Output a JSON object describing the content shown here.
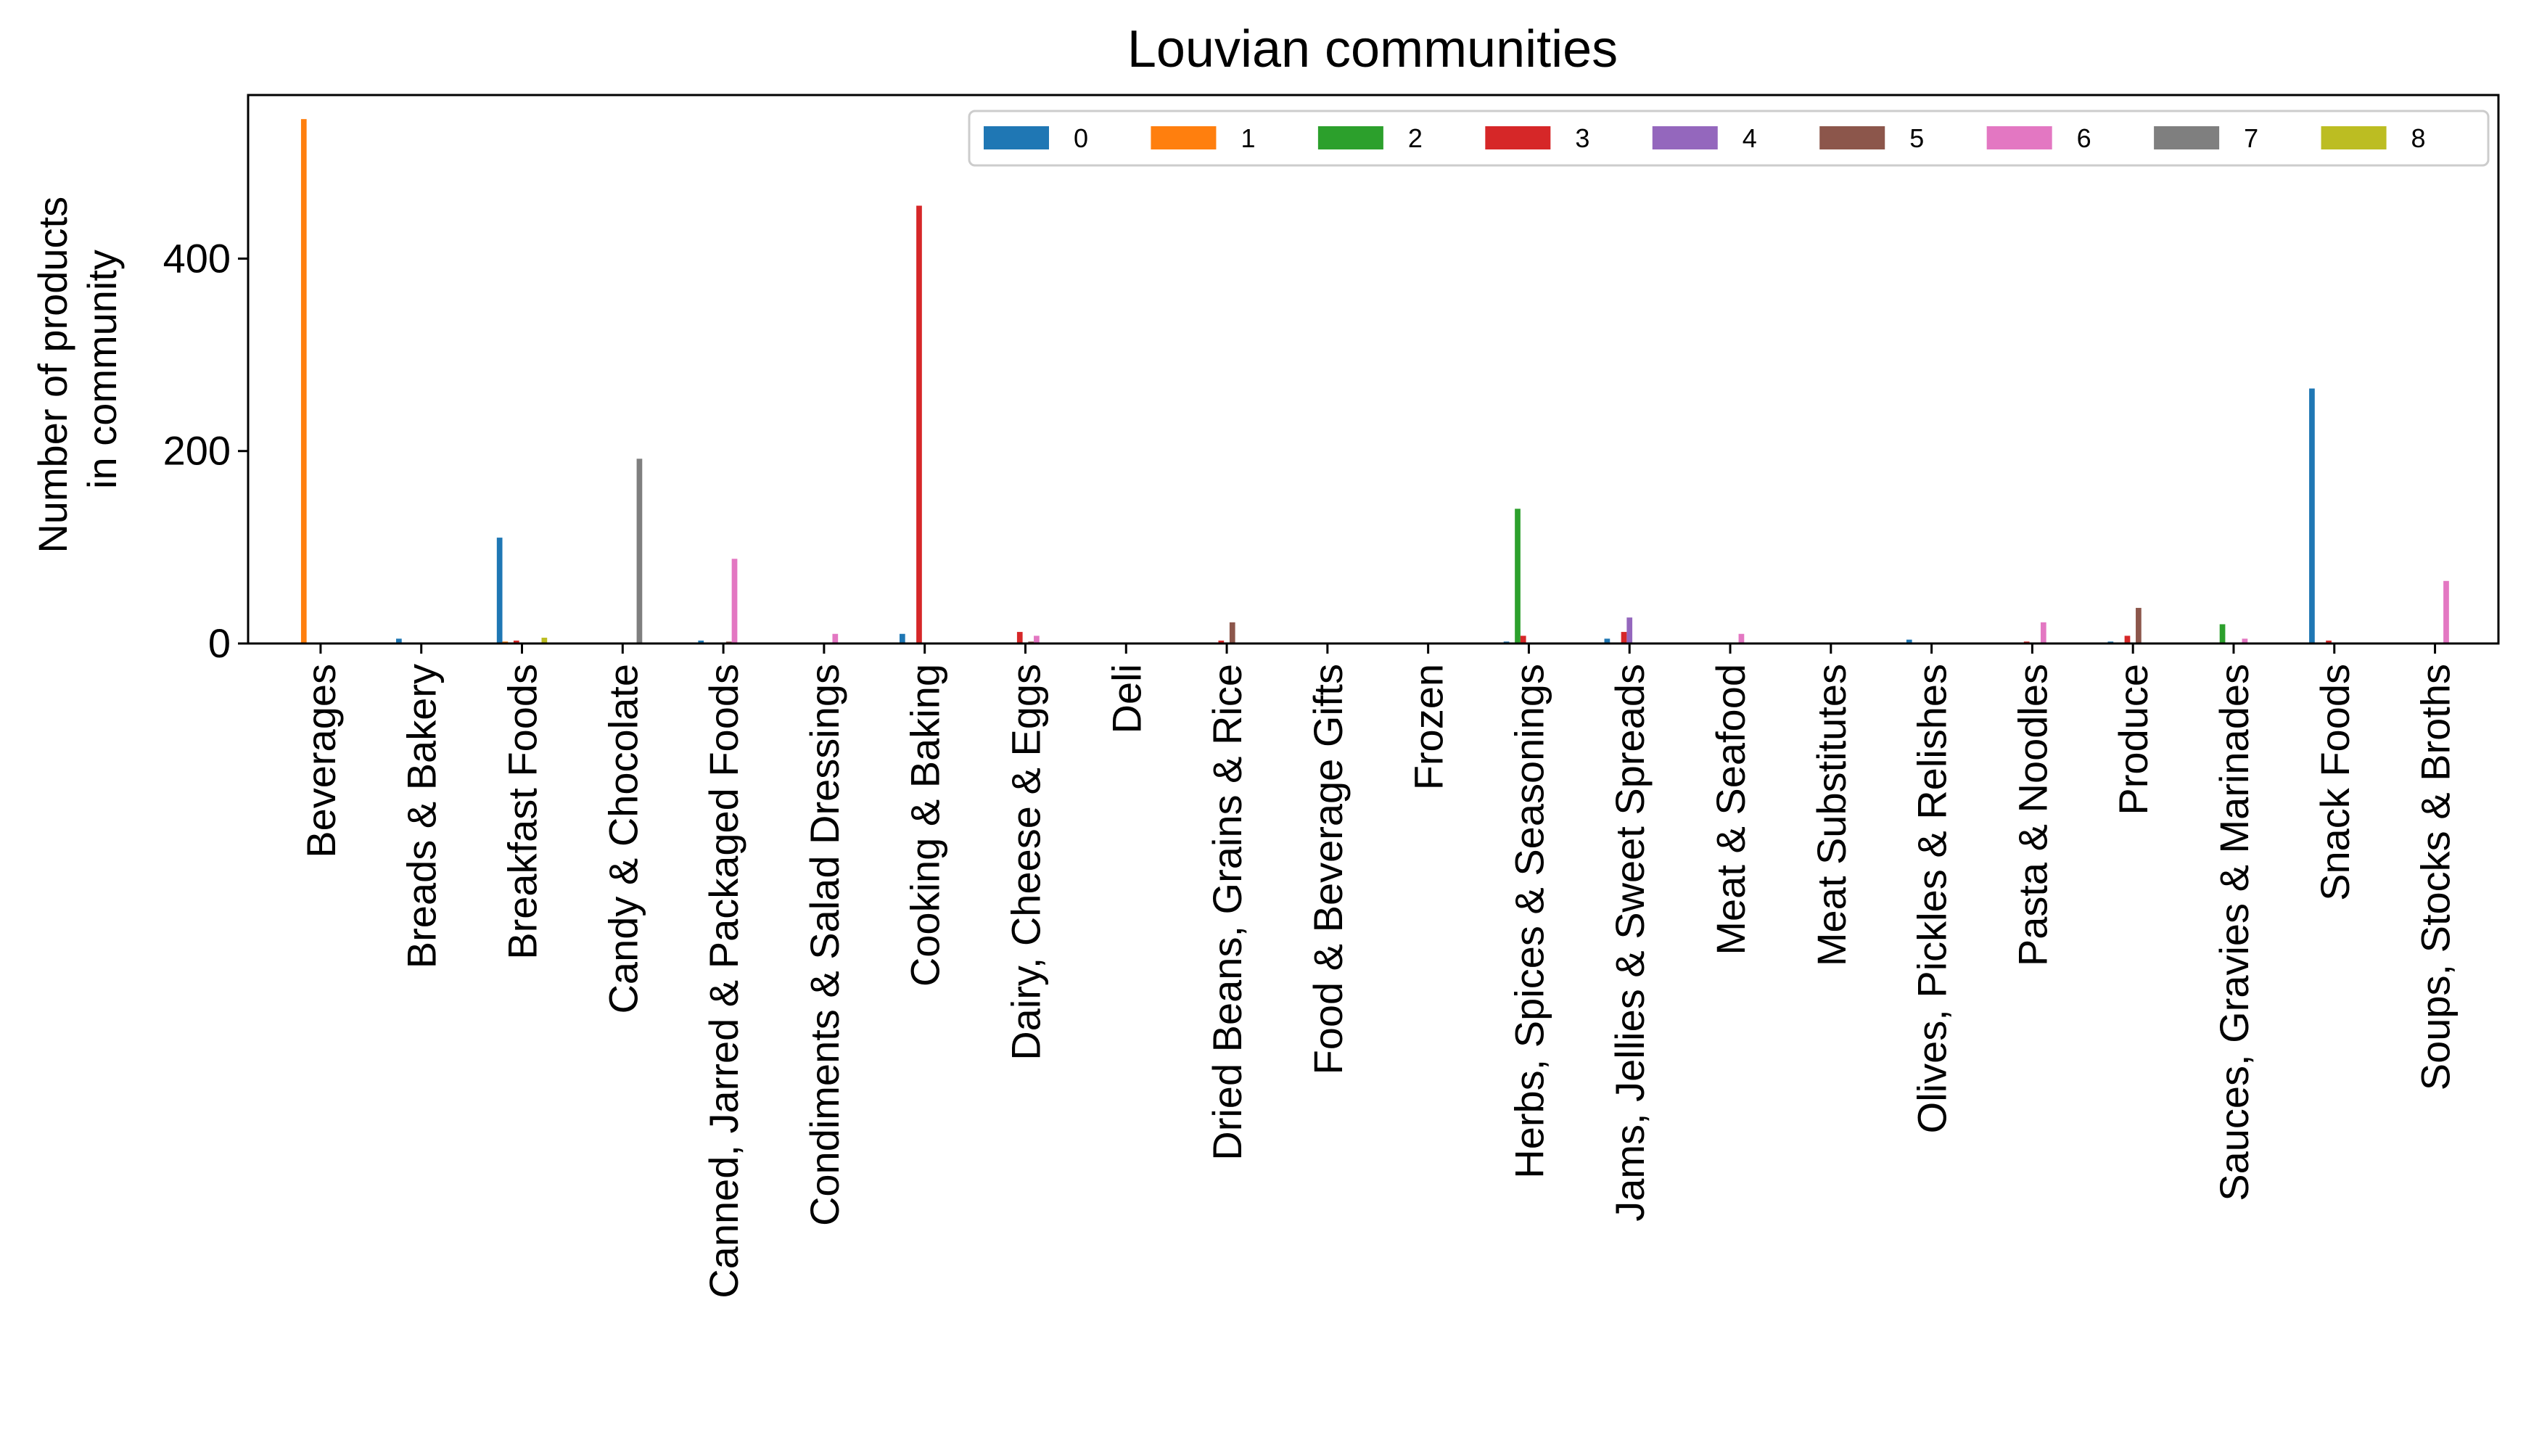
{
  "chart_data": {
    "type": "bar",
    "title": "Louvian communities",
    "xlabel": "",
    "ylabel_lines": [
      "Number of products",
      "in community"
    ],
    "ylim": [
      0,
      570
    ],
    "yticks": [
      0,
      200,
      400
    ],
    "grid": false,
    "legend": {
      "placement": "top-right",
      "columns": 9
    },
    "categories": [
      "Beverages",
      "Breads & Bakery",
      "Breakfast Foods",
      "Candy & Chocolate",
      "Canned, Jarred & Packaged Foods",
      "Condiments & Salad Dressings",
      "Cooking & Baking",
      "Dairy, Cheese & Eggs",
      "Deli",
      "Dried Beans, Grains & Rice",
      "Food & Beverage Gifts",
      "Frozen",
      "Herbs, Spices & Seasonings",
      "Jams, Jellies & Sweet Spreads",
      "Meat & Seafood",
      "Meat Substitutes",
      "Olives, Pickles & Relishes",
      "Pasta & Noodles",
      "Produce",
      "Sauces, Gravies & Marinades",
      "Snack Foods",
      "Soups, Stocks & Broths"
    ],
    "series": [
      {
        "name": "0",
        "color": "#1f77b4",
        "values": [
          0,
          5,
          110,
          0,
          3,
          0,
          10,
          0,
          0,
          0,
          1,
          0,
          2,
          5,
          0,
          0,
          4,
          0,
          2,
          0,
          265,
          0
        ]
      },
      {
        "name": "1",
        "color": "#ff7f0e",
        "values": [
          545,
          0,
          2,
          0,
          1,
          1,
          0,
          1,
          0,
          0,
          0,
          0,
          0,
          0,
          0,
          0,
          0,
          0,
          0,
          0,
          0,
          0
        ]
      },
      {
        "name": "2",
        "color": "#2ca02c",
        "values": [
          0,
          0,
          0,
          0,
          0,
          0,
          0,
          0,
          0,
          0,
          0,
          0,
          140,
          0,
          0,
          0,
          0,
          0,
          0,
          20,
          0,
          0
        ]
      },
      {
        "name": "3",
        "color": "#d62728",
        "values": [
          0,
          0,
          3,
          0,
          1,
          0,
          455,
          12,
          0,
          3,
          0,
          0,
          8,
          12,
          0,
          0,
          0,
          2,
          8,
          0,
          3,
          0
        ]
      },
      {
        "name": "4",
        "color": "#9467bd",
        "values": [
          0,
          0,
          0,
          0,
          0,
          0,
          0,
          0,
          0,
          0,
          0,
          0,
          0,
          27,
          0,
          0,
          0,
          0,
          0,
          0,
          0,
          0
        ]
      },
      {
        "name": "5",
        "color": "#8c564b",
        "values": [
          0,
          0,
          1,
          0,
          2,
          0,
          0,
          2,
          0,
          22,
          1,
          0,
          0,
          0,
          0,
          0,
          0,
          0,
          37,
          0,
          0,
          0
        ]
      },
      {
        "name": "6",
        "color": "#e377c2",
        "values": [
          0,
          0,
          0,
          0,
          88,
          10,
          0,
          8,
          0,
          0,
          0,
          0,
          0,
          0,
          10,
          0,
          0,
          22,
          0,
          5,
          0,
          65
        ]
      },
      {
        "name": "7",
        "color": "#7f7f7f",
        "values": [
          0,
          0,
          0,
          192,
          0,
          0,
          0,
          0,
          0,
          0,
          0,
          0,
          0,
          0,
          0,
          0,
          0,
          0,
          0,
          0,
          0,
          0
        ]
      },
      {
        "name": "8",
        "color": "#bcbd22",
        "values": [
          0,
          0,
          6,
          0,
          0,
          0,
          0,
          0,
          0,
          0,
          0,
          0,
          0,
          0,
          0,
          0,
          0,
          0,
          0,
          0,
          0,
          0
        ]
      }
    ]
  }
}
